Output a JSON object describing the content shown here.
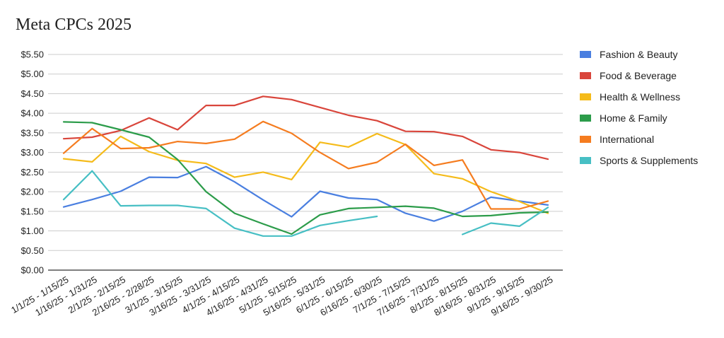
{
  "chart_data": {
    "type": "line",
    "title": "Meta CPCs 2025",
    "xlabel": "",
    "ylabel": "",
    "ylim": [
      0,
      5.5
    ],
    "yticks": [
      "$0.00",
      "$0.50",
      "$1.00",
      "$1.50",
      "$2.00",
      "$2.50",
      "$3.00",
      "$3.50",
      "$4.00",
      "$4.50",
      "$5.00",
      "$5.50"
    ],
    "grid": true,
    "legend_position": "right",
    "categories": [
      "1/1/25 - 1/15/25",
      "1/16/25 - 1/31/25",
      "2/1/25 - 2/15/25",
      "2/16/25 - 2/28/25",
      "3/1/25 - 3/15/25",
      "3/16/25 - 3/31/25",
      "4/1/25 - 4/15/25",
      "4/16/25 - 4/31/25",
      "5/1/25 - 5/15/25",
      "5/16/25 - 5/31/25",
      "6/1/25 - 6/15/25",
      "6/16/25 - 6/30/25",
      "7/1/25 - 7/15/25",
      "7/16/25 - 7/31/25",
      "8/1/25 - 8/15/25",
      "8/16/25 - 8/31/25",
      "9/1/25 - 9/15/25",
      "9/16/25 - 9/30/25"
    ],
    "series": [
      {
        "name": "Fashion & Beauty",
        "color": "#4a7fe0",
        "values": [
          1.61,
          1.8,
          2.01,
          2.37,
          2.36,
          2.64,
          2.25,
          1.79,
          1.36,
          2.01,
          1.84,
          1.8,
          1.45,
          1.25,
          1.5,
          1.86,
          1.76,
          1.66
        ]
      },
      {
        "name": "Food & Beverage",
        "color": "#d9453b",
        "values": [
          3.35,
          3.39,
          3.56,
          3.88,
          3.58,
          4.2,
          4.2,
          4.43,
          4.35,
          4.15,
          3.95,
          3.81,
          3.54,
          3.53,
          3.41,
          3.07,
          3.0,
          2.83
        ]
      },
      {
        "name": "Health & Wellness",
        "color": "#f5bb1a",
        "values": [
          2.84,
          2.76,
          3.41,
          3.02,
          2.8,
          2.72,
          2.37,
          2.5,
          2.31,
          3.26,
          3.14,
          3.48,
          3.2,
          2.46,
          2.33,
          2.0,
          1.75,
          1.45
        ]
      },
      {
        "name": "Home & Family",
        "color": "#2c9c4a",
        "values": [
          3.78,
          3.76,
          3.58,
          3.39,
          2.82,
          2.0,
          1.45,
          1.18,
          0.92,
          1.41,
          1.57,
          1.6,
          1.63,
          1.58,
          1.37,
          1.39,
          1.46,
          1.48
        ]
      },
      {
        "name": "International",
        "color": "#f57c1f",
        "values": [
          2.98,
          3.61,
          3.1,
          3.12,
          3.28,
          3.23,
          3.34,
          3.79,
          3.49,
          3.0,
          2.59,
          2.75,
          3.21,
          2.67,
          2.81,
          1.56,
          1.56,
          1.76
        ]
      },
      {
        "name": "Sports & Supplements",
        "color": "#47bfc4",
        "values": [
          1.8,
          2.53,
          1.64,
          1.65,
          1.65,
          1.57,
          1.07,
          0.87,
          0.87,
          1.14,
          1.26,
          1.37,
          null,
          null,
          0.91,
          1.2,
          1.12,
          1.6
        ]
      }
    ]
  }
}
